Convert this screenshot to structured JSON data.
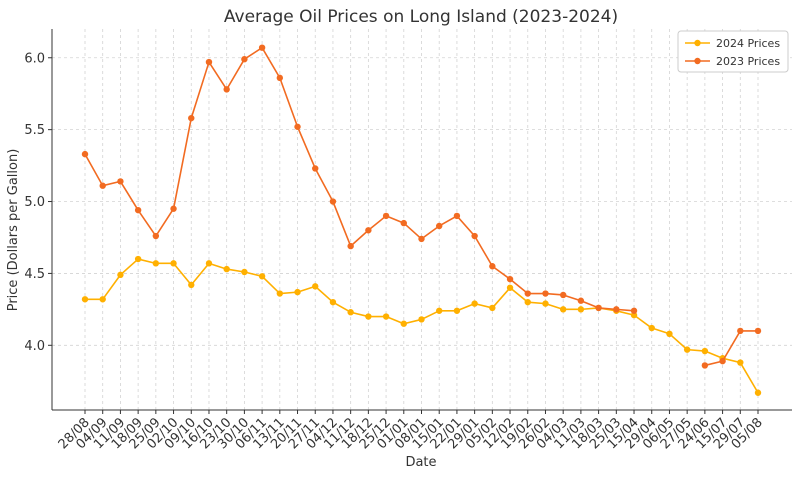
{
  "chart_data": {
    "type": "line",
    "title": "Average Oil Prices on Long Island (2023-2024)",
    "xlabel": "Date",
    "ylabel": "Price (Dollars per Gallon)",
    "categories": [
      "28/08",
      "04/09",
      "11/09",
      "18/09",
      "25/09",
      "02/10",
      "09/10",
      "16/10",
      "23/10",
      "30/10",
      "06/11",
      "13/11",
      "20/11",
      "27/11",
      "04/12",
      "11/12",
      "18/12",
      "25/12",
      "01/01",
      "08/01",
      "15/01",
      "22/01",
      "29/01",
      "05/02",
      "12/02",
      "19/02",
      "26/02",
      "04/03",
      "11/03",
      "18/03",
      "25/03",
      "15/04",
      "29/04",
      "06/05",
      "27/05",
      "24/06",
      "15/07",
      "29/07",
      "05/08"
    ],
    "ylim": [
      3.55,
      6.2
    ],
    "yticks": [
      4.0,
      4.5,
      5.0,
      5.5,
      6.0
    ],
    "ytick_labels": [
      "4.0",
      "4.5",
      "5.0",
      "5.5",
      "6.0"
    ],
    "grid": true,
    "legend_position": "top-right",
    "series": [
      {
        "name": "2024 Prices",
        "color": "#FFB000",
        "values": [
          4.32,
          4.32,
          4.49,
          4.6,
          4.57,
          4.57,
          4.42,
          4.57,
          4.53,
          4.51,
          4.48,
          4.36,
          4.37,
          4.41,
          4.3,
          4.23,
          4.2,
          4.2,
          4.15,
          4.18,
          4.24,
          4.24,
          4.29,
          4.26,
          4.4,
          4.3,
          4.29,
          4.25,
          4.25,
          4.26,
          4.24,
          4.21,
          4.12,
          4.08,
          3.97,
          3.96,
          3.91,
          3.88,
          3.67
        ]
      },
      {
        "name": "2023 Prices",
        "color": "#F26B21",
        "values": [
          5.33,
          5.11,
          5.14,
          4.94,
          4.76,
          4.95,
          5.58,
          5.97,
          5.78,
          5.99,
          6.07,
          5.86,
          5.52,
          5.23,
          5.0,
          4.69,
          4.8,
          4.9,
          4.85,
          4.74,
          4.83,
          4.9,
          4.76,
          4.55,
          4.46,
          4.36,
          4.36,
          4.35,
          4.31,
          4.26,
          4.25,
          4.24,
          null,
          null,
          null,
          3.86,
          3.89,
          4.1,
          4.1
        ]
      }
    ]
  }
}
